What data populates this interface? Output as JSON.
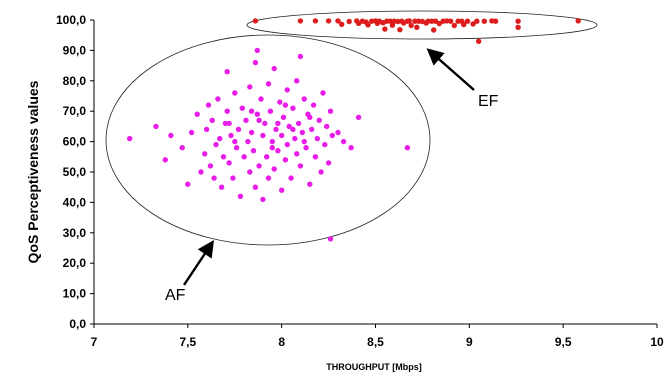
{
  "chart_data": {
    "type": "scatter",
    "title": "",
    "xlabel": "THROUGHPUT [Mbps]",
    "ylabel": "QoS Perceptiveness values",
    "xlim": [
      7,
      10
    ],
    "ylim": [
      0,
      100
    ],
    "x_ticks": [
      "7",
      "7,5",
      "8",
      "8,5",
      "9",
      "9,5",
      "10"
    ],
    "y_ticks": [
      "0,0",
      "10,0",
      "20,0",
      "30,0",
      "40,0",
      "50,0",
      "60,0",
      "70,0",
      "80,0",
      "90,0",
      "100,0"
    ],
    "grid": false,
    "legend": "none",
    "annotations": [
      "AF",
      "EF"
    ],
    "series": [
      {
        "color": "#e81ee8",
        "points": [
          [
            7.19,
            61
          ],
          [
            7.33,
            65
          ],
          [
            7.38,
            54
          ],
          [
            7.41,
            62
          ],
          [
            7.47,
            58
          ],
          [
            7.5,
            46
          ],
          [
            7.52,
            63
          ],
          [
            7.55,
            69
          ],
          [
            7.57,
            50
          ],
          [
            7.59,
            56
          ],
          [
            7.6,
            64
          ],
          [
            7.61,
            72
          ],
          [
            7.62,
            52
          ],
          [
            7.63,
            67
          ],
          [
            7.64,
            48
          ],
          [
            7.65,
            59
          ],
          [
            7.66,
            74
          ],
          [
            7.67,
            61
          ],
          [
            7.68,
            45
          ],
          [
            7.69,
            55
          ],
          [
            7.7,
            66
          ],
          [
            7.71,
            83
          ],
          [
            7.71,
            70
          ],
          [
            7.72,
            53
          ],
          [
            7.73,
            62
          ],
          [
            7.74,
            48
          ],
          [
            7.75,
            76
          ],
          [
            7.76,
            58
          ],
          [
            7.77,
            64
          ],
          [
            7.78,
            42
          ],
          [
            7.79,
            71
          ],
          [
            7.8,
            55
          ],
          [
            7.81,
            67
          ],
          [
            7.82,
            60
          ],
          [
            7.83,
            50
          ],
          [
            7.83,
            78
          ],
          [
            7.84,
            63
          ],
          [
            7.85,
            57
          ],
          [
            7.86,
            86
          ],
          [
            7.86,
            45
          ],
          [
            7.87,
            69
          ],
          [
            7.87,
            90
          ],
          [
            7.88,
            52
          ],
          [
            7.89,
            74
          ],
          [
            7.9,
            62
          ],
          [
            7.9,
            41
          ],
          [
            7.91,
            66
          ],
          [
            7.92,
            55
          ],
          [
            7.93,
            79
          ],
          [
            7.93,
            48
          ],
          [
            7.94,
            70
          ],
          [
            7.95,
            60
          ],
          [
            7.96,
            51
          ],
          [
            7.96,
            84
          ],
          [
            7.97,
            64
          ],
          [
            7.98,
            57
          ],
          [
            7.99,
            73
          ],
          [
            8.0,
            44
          ],
          [
            8.0,
            62
          ],
          [
            8.01,
            68
          ],
          [
            8.02,
            54
          ],
          [
            8.03,
            77
          ],
          [
            8.03,
            59
          ],
          [
            8.04,
            65
          ],
          [
            8.05,
            48
          ],
          [
            8.06,
            71
          ],
          [
            8.07,
            61
          ],
          [
            8.08,
            56
          ],
          [
            8.08,
            80
          ],
          [
            8.09,
            66
          ],
          [
            8.1,
            52
          ],
          [
            8.1,
            88
          ],
          [
            8.11,
            63
          ],
          [
            8.12,
            74
          ],
          [
            8.13,
            58
          ],
          [
            8.14,
            69
          ],
          [
            8.15,
            46
          ],
          [
            8.16,
            64
          ],
          [
            8.17,
            72
          ],
          [
            8.18,
            55
          ],
          [
            8.19,
            61
          ],
          [
            8.2,
            67
          ],
          [
            8.21,
            50
          ],
          [
            8.22,
            76
          ],
          [
            8.23,
            59
          ],
          [
            8.24,
            65
          ],
          [
            8.25,
            53
          ],
          [
            8.26,
            70
          ],
          [
            8.26,
            28
          ],
          [
            8.27,
            62
          ],
          [
            8.3,
            63
          ],
          [
            8.33,
            60
          ],
          [
            8.37,
            58
          ],
          [
            8.41,
            68
          ],
          [
            8.67,
            58
          ],
          [
            7.75,
            60
          ],
          [
            7.88,
            67
          ],
          [
            8.02,
            72
          ],
          [
            8.12,
            60
          ],
          [
            7.95,
            58
          ],
          [
            8.06,
            64
          ],
          [
            7.84,
            70
          ],
          [
            7.98,
            66
          ],
          [
            8.15,
            68
          ],
          [
            7.72,
            66
          ]
        ]
      },
      {
        "color": "#dd1c1c",
        "points": [
          [
            7.86,
            99.7
          ],
          [
            8.1,
            99.7
          ],
          [
            8.18,
            99.7
          ],
          [
            8.25,
            99.7
          ],
          [
            8.3,
            99.7
          ],
          [
            8.32,
            98.6
          ],
          [
            8.36,
            99.5
          ],
          [
            8.4,
            99.7
          ],
          [
            8.41,
            98.9
          ],
          [
            8.43,
            99.6
          ],
          [
            8.45,
            99.3
          ],
          [
            8.46,
            98.4
          ],
          [
            8.48,
            99.6
          ],
          [
            8.5,
            99.7
          ],
          [
            8.51,
            98.9
          ],
          [
            8.52,
            99.6
          ],
          [
            8.54,
            99.1
          ],
          [
            8.55,
            97.0
          ],
          [
            8.56,
            99.6
          ],
          [
            8.58,
            99.6
          ],
          [
            8.59,
            98.3
          ],
          [
            8.6,
            99.6
          ],
          [
            8.62,
            99.5
          ],
          [
            8.63,
            96.8
          ],
          [
            8.64,
            99.6
          ],
          [
            8.65,
            99.0
          ],
          [
            8.67,
            99.6
          ],
          [
            8.68,
            99.7
          ],
          [
            8.69,
            98.2
          ],
          [
            8.71,
            99.6
          ],
          [
            8.72,
            97.6
          ],
          [
            8.73,
            99.6
          ],
          [
            8.75,
            99.5
          ],
          [
            8.77,
            99.0
          ],
          [
            8.78,
            99.6
          ],
          [
            8.8,
            99.6
          ],
          [
            8.81,
            96.7
          ],
          [
            8.82,
            99.6
          ],
          [
            8.84,
            98.8
          ],
          [
            8.86,
            99.6
          ],
          [
            8.88,
            99.7
          ],
          [
            8.9,
            99.6
          ],
          [
            8.92,
            98.2
          ],
          [
            8.94,
            99.6
          ],
          [
            8.96,
            99.6
          ],
          [
            8.97,
            98.5
          ],
          [
            8.99,
            99.6
          ],
          [
            9.02,
            98.7
          ],
          [
            9.04,
            99.6
          ],
          [
            9.05,
            93.0
          ],
          [
            9.08,
            99.6
          ],
          [
            9.12,
            99.7
          ],
          [
            9.14,
            99.6
          ],
          [
            9.26,
            99.6
          ],
          [
            9.26,
            97.6
          ],
          [
            9.58,
            99.7
          ]
        ]
      }
    ]
  }
}
